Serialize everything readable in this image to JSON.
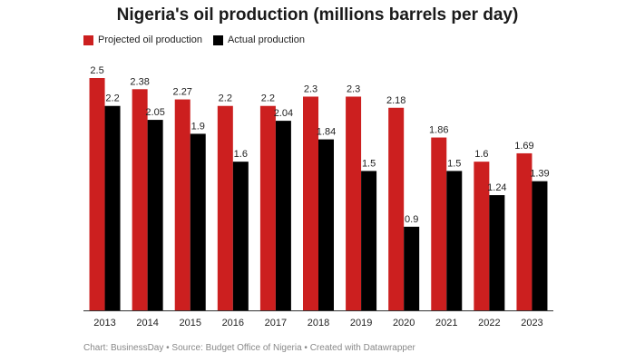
{
  "title": "Nigeria's oil production (millions barrels per day)",
  "footer": "Chart: BusinessDay • Source: Budget Office of Nigeria • Created with Datawrapper",
  "colors": {
    "projected": "#cc1f1f",
    "actual": "#000000",
    "axis": "#333333"
  },
  "chart_data": {
    "type": "bar",
    "title": "Nigeria's oil production (millions barrels per day)",
    "xlabel": "",
    "ylabel": "",
    "ylim": [
      0,
      2.5
    ],
    "grid": false,
    "legend": "top-left",
    "categories": [
      "2013",
      "2014",
      "2015",
      "2016",
      "2017",
      "2018",
      "2019",
      "2020",
      "2021",
      "2022",
      "2023"
    ],
    "series": [
      {
        "name": "Projected oil production",
        "color": "#cc1f1f",
        "values": [
          2.5,
          2.38,
          2.27,
          2.2,
          2.2,
          2.3,
          2.3,
          2.18,
          1.86,
          1.6,
          1.69
        ],
        "labels": [
          "2.5",
          "2.38",
          "2.27",
          "2.2",
          "2.2",
          "2.3",
          "2.3",
          "2.18",
          "1.86",
          "1.6",
          "1.69"
        ]
      },
      {
        "name": "Actual production",
        "color": "#000000",
        "values": [
          2.2,
          2.05,
          1.9,
          1.6,
          2.04,
          1.84,
          1.5,
          0.9,
          1.5,
          1.24,
          1.39
        ],
        "labels": [
          "2.2",
          "2.05",
          "1.9",
          "1.6",
          "2.04",
          "1.84",
          "1.5",
          "0.9",
          "1.5",
          "1.24",
          "1.39"
        ]
      }
    ]
  }
}
